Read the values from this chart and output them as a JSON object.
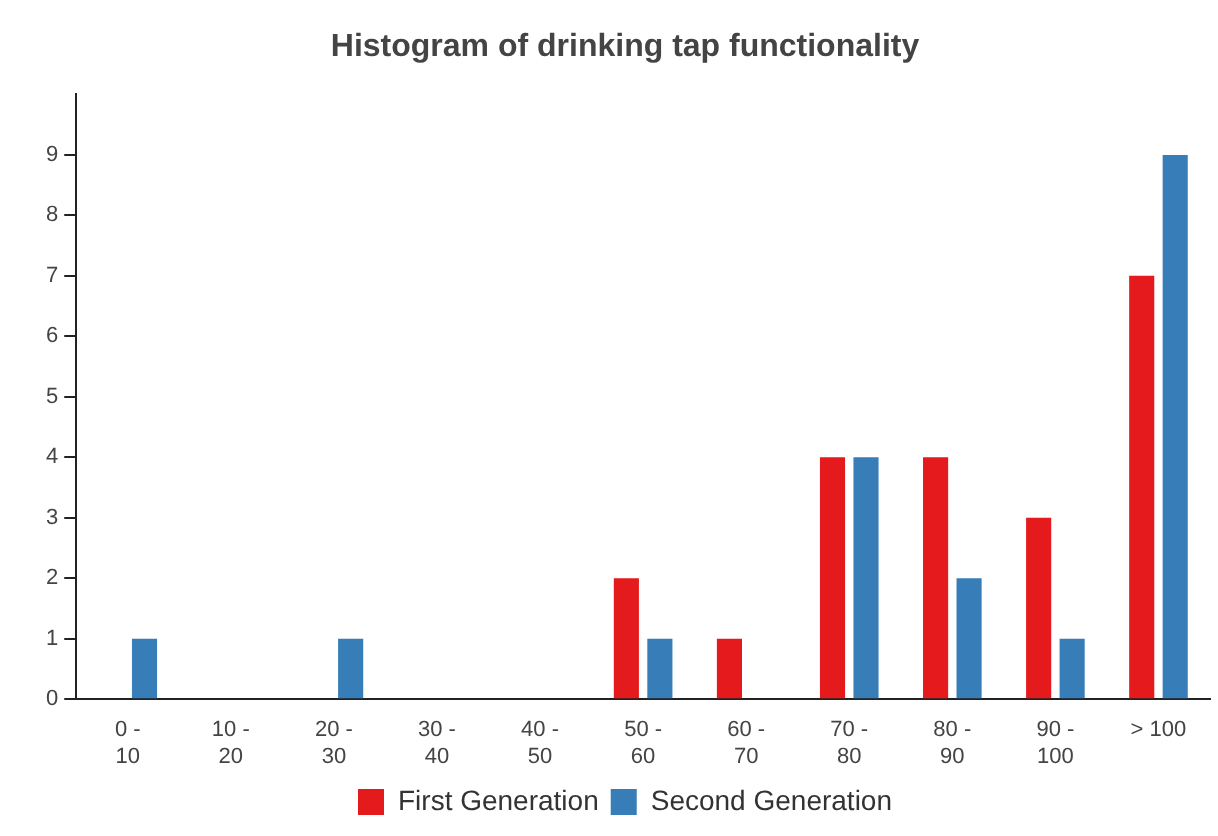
{
  "chart_data": {
    "type": "bar",
    "title": "Histogram of drinking tap functionality",
    "categories": [
      "0 - 10",
      "10 - 20",
      "20 - 30",
      "30 - 40",
      "40 - 50",
      "50 - 60",
      "60 - 70",
      "70 - 80",
      "80 - 90",
      "90 - 100",
      "> 100"
    ],
    "series": [
      {
        "name": "First Generation",
        "color": "#e41a1c",
        "values": [
          0,
          0,
          0,
          0,
          0,
          2,
          1,
          4,
          4,
          3,
          7
        ]
      },
      {
        "name": "Second Generation",
        "color": "#377eb8",
        "values": [
          1,
          0,
          1,
          0,
          0,
          1,
          0,
          4,
          2,
          1,
          9
        ]
      }
    ],
    "ylim": [
      0,
      10
    ],
    "yticks": [
      0,
      1,
      2,
      3,
      4,
      5,
      6,
      7,
      8,
      9
    ],
    "grid": false,
    "legend": "bottom"
  }
}
